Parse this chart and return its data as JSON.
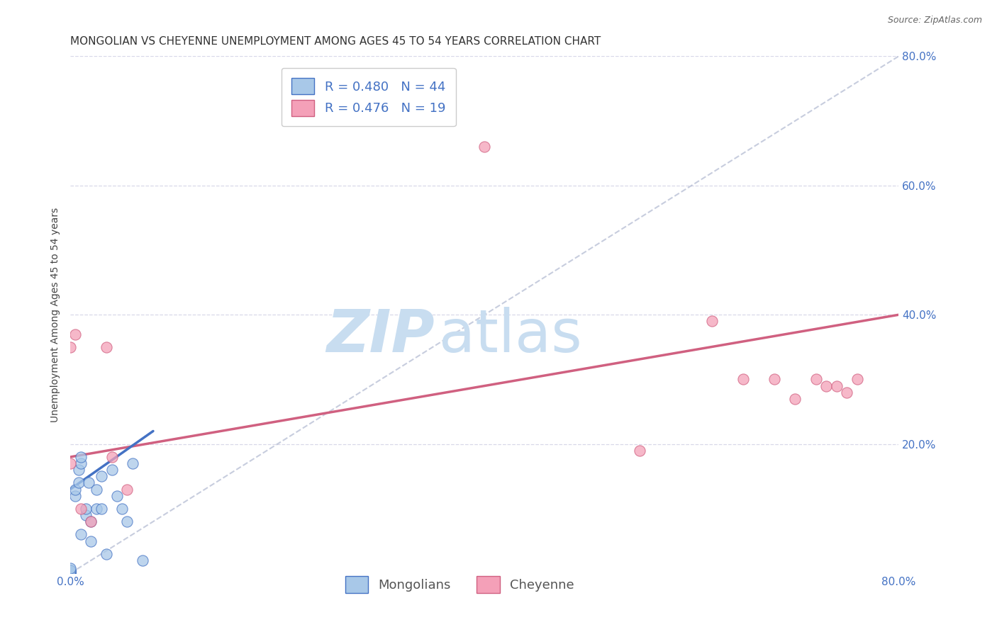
{
  "title": "MONGOLIAN VS CHEYENNE UNEMPLOYMENT AMONG AGES 45 TO 54 YEARS CORRELATION CHART",
  "source": "Source: ZipAtlas.com",
  "tick_color": "#4472c4",
  "ylabel": "Unemployment Among Ages 45 to 54 years",
  "mongolian_R": 0.48,
  "mongolian_N": 44,
  "cheyenne_R": 0.476,
  "cheyenne_N": 19,
  "mongolian_color": "#a8c8e8",
  "mongolian_edge": "#4472c4",
  "cheyenne_color": "#f4a0b8",
  "cheyenne_edge": "#d06080",
  "trend_mongolian_color": "#4472c4",
  "trend_cheyenne_color": "#d06080",
  "diagonal_color": "#b0b8d0",
  "background_color": "#ffffff",
  "grid_color": "#d8d8e8",
  "watermark_zip": "ZIP",
  "watermark_atlas": "atlas",
  "watermark_color_zip": "#c8ddf0",
  "watermark_color_atlas": "#c8ddf0",
  "xlim": [
    0.0,
    0.8
  ],
  "ylim": [
    0.0,
    0.8
  ],
  "xtick_positions": [
    0.0,
    0.8
  ],
  "xtick_labels": [
    "0.0%",
    "80.0%"
  ],
  "ytick_positions": [
    0.2,
    0.4,
    0.6,
    0.8
  ],
  "ytick_labels": [
    "20.0%",
    "40.0%",
    "60.0%",
    "80.0%"
  ],
  "mongolian_x": [
    0.0,
    0.0,
    0.0,
    0.0,
    0.0,
    0.0,
    0.0,
    0.0,
    0.0,
    0.0,
    0.0,
    0.0,
    0.0,
    0.0,
    0.0,
    0.0,
    0.0,
    0.0,
    0.0,
    0.0,
    0.0,
    0.005,
    0.005,
    0.008,
    0.008,
    0.01,
    0.01,
    0.01,
    0.015,
    0.015,
    0.018,
    0.02,
    0.02,
    0.025,
    0.025,
    0.03,
    0.03,
    0.035,
    0.04,
    0.045,
    0.05,
    0.055,
    0.06,
    0.07
  ],
  "mongolian_y": [
    0.0,
    0.0,
    0.0,
    0.0,
    0.0,
    0.0,
    0.0,
    0.0,
    0.0,
    0.0,
    0.0,
    0.0,
    0.0,
    0.0,
    0.002,
    0.002,
    0.003,
    0.005,
    0.005,
    0.005,
    0.008,
    0.12,
    0.13,
    0.14,
    0.16,
    0.17,
    0.18,
    0.06,
    0.09,
    0.1,
    0.14,
    0.05,
    0.08,
    0.1,
    0.13,
    0.1,
    0.15,
    0.03,
    0.16,
    0.12,
    0.1,
    0.08,
    0.17,
    0.02
  ],
  "cheyenne_x": [
    0.0,
    0.0,
    0.005,
    0.01,
    0.02,
    0.035,
    0.04,
    0.055,
    0.4,
    0.55,
    0.62,
    0.65,
    0.68,
    0.7,
    0.72,
    0.73,
    0.74,
    0.75,
    0.76
  ],
  "cheyenne_y": [
    0.17,
    0.35,
    0.37,
    0.1,
    0.08,
    0.35,
    0.18,
    0.13,
    0.66,
    0.19,
    0.39,
    0.3,
    0.3,
    0.27,
    0.3,
    0.29,
    0.29,
    0.28,
    0.3
  ],
  "mongolian_trend_x": [
    0.0,
    0.08
  ],
  "mongolian_trend_y": [
    0.13,
    0.22
  ],
  "cheyenne_trend_x": [
    0.0,
    0.8
  ],
  "cheyenne_trend_y": [
    0.18,
    0.4
  ],
  "title_fontsize": 11,
  "axis_label_fontsize": 10,
  "tick_fontsize": 11,
  "legend_fontsize": 13,
  "watermark_fontsize_zip": 60,
  "watermark_fontsize_atlas": 60,
  "marker_size": 120,
  "bottom_legend_labels": [
    "Mongolians",
    "Cheyenne"
  ]
}
